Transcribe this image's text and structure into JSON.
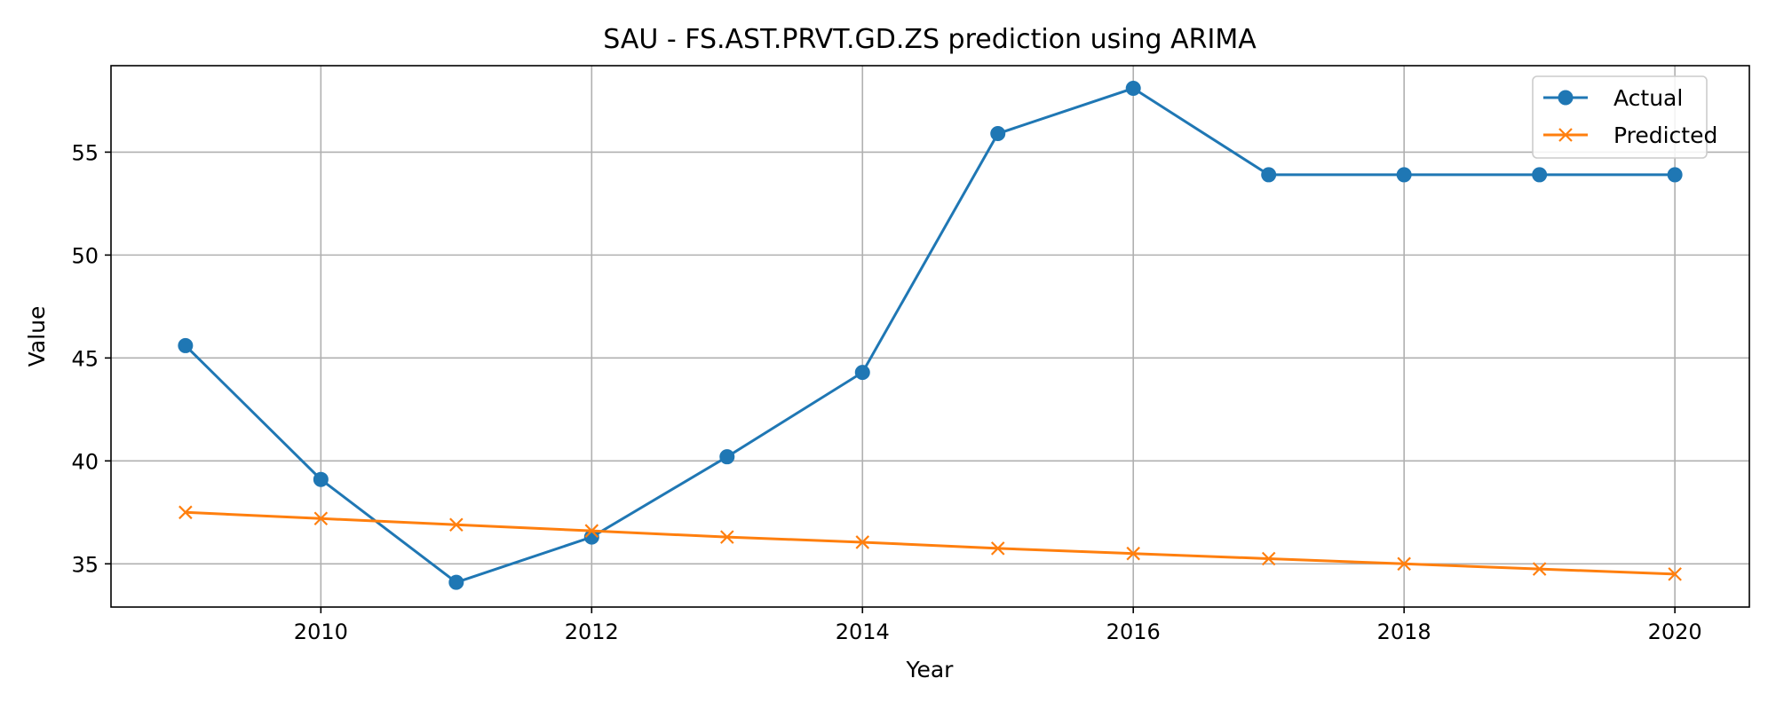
{
  "chart_data": {
    "type": "line",
    "title": "SAU - FS.AST.PRVT.GD.ZS prediction using ARIMA",
    "xlabel": "Year",
    "ylabel": "Value",
    "x": [
      2009,
      2010,
      2011,
      2012,
      2013,
      2014,
      2015,
      2016,
      2017,
      2018,
      2019,
      2020
    ],
    "xlim": [
      2008.45,
      2020.55
    ],
    "ylim": [
      32.9,
      59.2
    ],
    "xticks": [
      2010,
      2012,
      2014,
      2016,
      2018,
      2020
    ],
    "yticks": [
      35,
      40,
      45,
      50,
      55
    ],
    "grid": true,
    "legend_position": "top-right",
    "series": [
      {
        "name": "Actual",
        "color": "#1f77b4",
        "marker": "circle",
        "values": [
          45.6,
          39.1,
          34.1,
          36.3,
          40.2,
          44.3,
          55.9,
          58.1,
          53.9,
          53.9,
          53.9,
          53.9
        ]
      },
      {
        "name": "Predicted",
        "color": "#ff7f0e",
        "marker": "x",
        "values": [
          37.5,
          37.2,
          36.9,
          36.6,
          36.3,
          36.05,
          35.75,
          35.5,
          35.25,
          35.0,
          34.75,
          34.5
        ]
      }
    ]
  }
}
